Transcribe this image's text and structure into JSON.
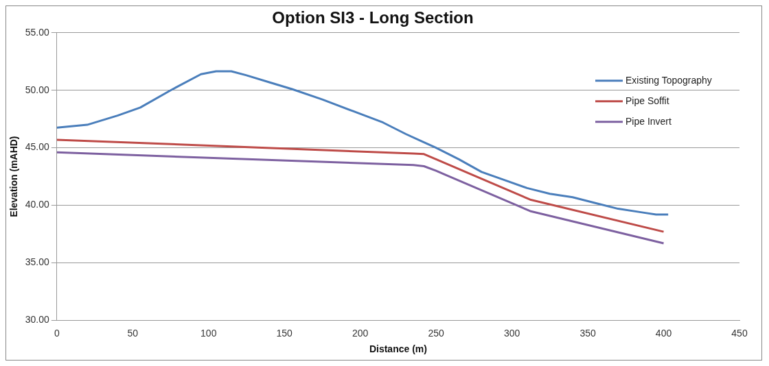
{
  "chart_data": {
    "type": "line",
    "title": "Option SI3 - Long Section",
    "xlabel": "Distance (m)",
    "ylabel": "Elevation (mAHD)",
    "xlim": [
      0,
      450
    ],
    "xticks": [
      0,
      50,
      100,
      150,
      200,
      250,
      300,
      350,
      400,
      450
    ],
    "ylim": [
      30,
      55
    ],
    "yticks": [
      {
        "value": 30,
        "label": "30.00"
      },
      {
        "value": 35,
        "label": "35.00"
      },
      {
        "value": 40,
        "label": "40.00"
      },
      {
        "value": 45,
        "label": "45.00"
      },
      {
        "value": 50,
        "label": "50.00"
      },
      {
        "value": 55,
        "label": "55.00"
      }
    ],
    "grid": "y",
    "legend": "top right",
    "marker": "none",
    "series": [
      {
        "name": "Existing Topography",
        "color": "#4a7ebb",
        "x": [
          0,
          20,
          40,
          55,
          75,
          95,
          105,
          115,
          125,
          140,
          155,
          175,
          195,
          215,
          230,
          240,
          250,
          265,
          280,
          295,
          310,
          325,
          340,
          355,
          370,
          385,
          395,
          403
        ],
        "values": [
          46.75,
          47.0,
          47.8,
          48.5,
          50.0,
          51.4,
          51.65,
          51.65,
          51.3,
          50.7,
          50.1,
          49.2,
          48.2,
          47.2,
          46.2,
          45.6,
          45.0,
          44.0,
          42.9,
          42.2,
          41.5,
          41.0,
          40.7,
          40.2,
          39.7,
          39.4,
          39.2,
          39.2
        ]
      },
      {
        "name": "Pipe Soffit",
        "color": "#be4b48",
        "x": [
          0,
          235,
          242,
          250,
          312,
          400
        ],
        "values": [
          45.7,
          44.5,
          44.45,
          44.0,
          40.5,
          37.7
        ]
      },
      {
        "name": "Pipe Invert",
        "color": "#7d60a0",
        "x": [
          0,
          235,
          242,
          250,
          312,
          400
        ],
        "values": [
          44.6,
          43.5,
          43.4,
          43.0,
          39.5,
          36.7
        ]
      }
    ]
  }
}
